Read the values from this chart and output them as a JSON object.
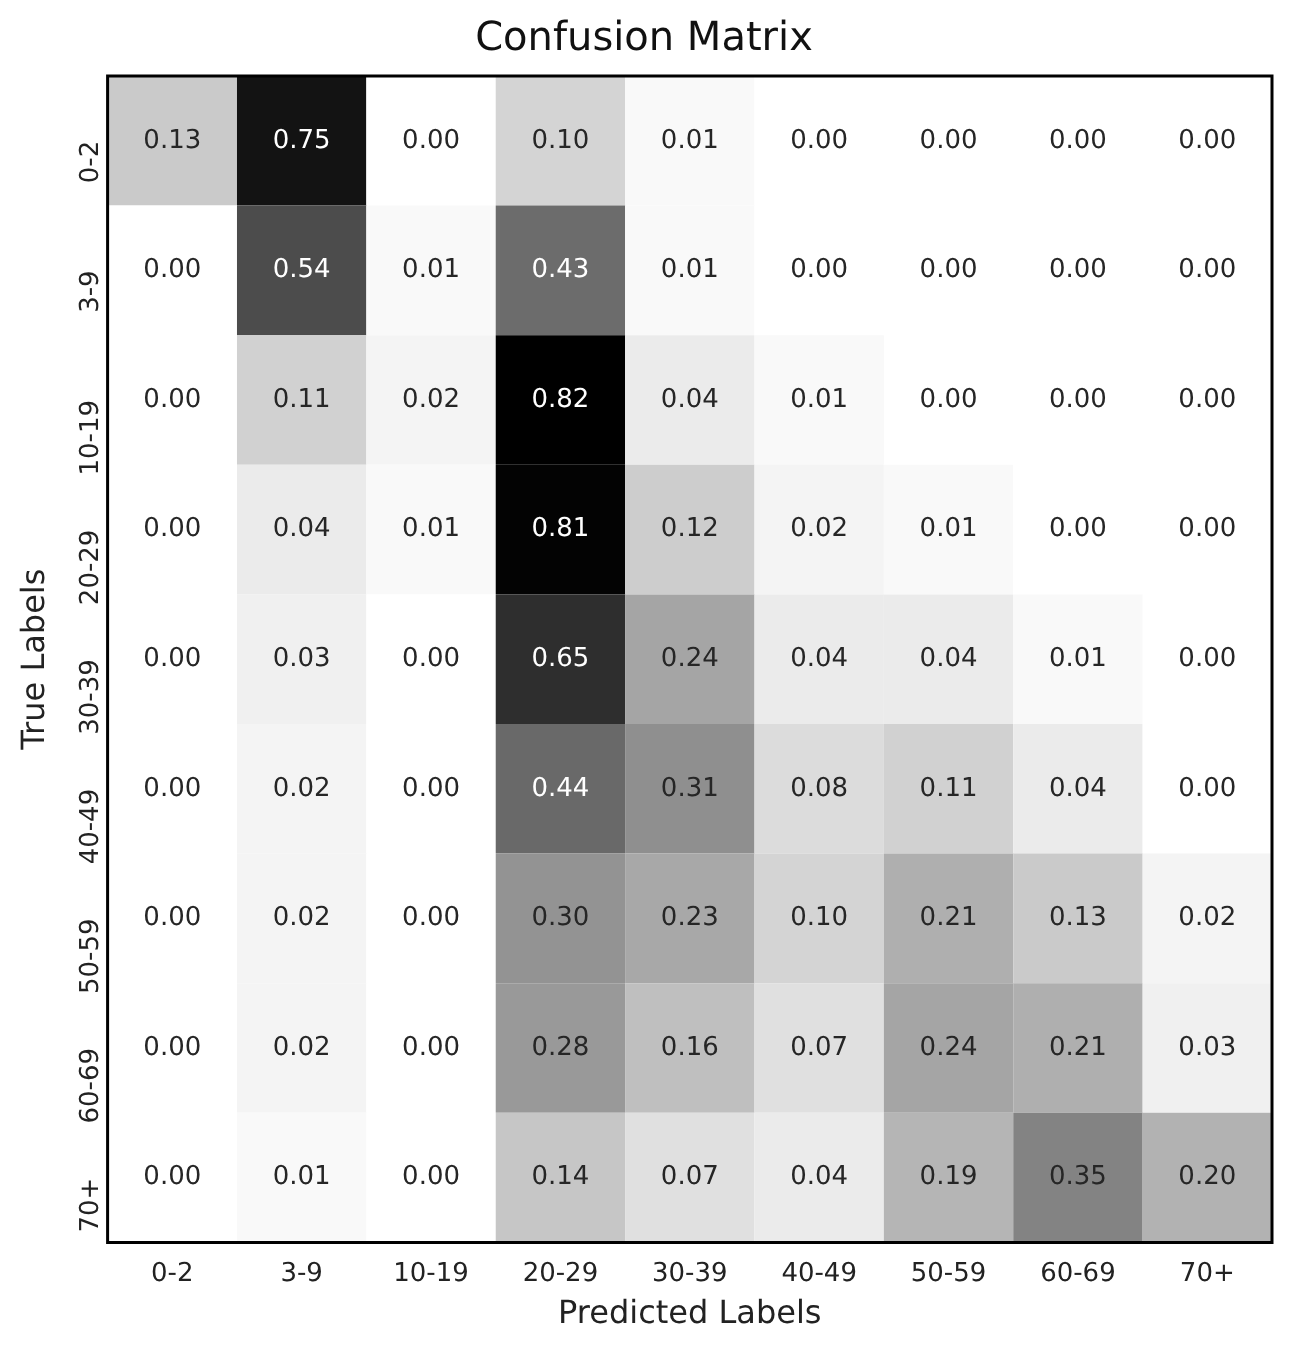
{
  "chart_data": {
    "type": "heatmap",
    "title": "Confusion Matrix",
    "xlabel": "Predicted Labels",
    "ylabel": "True Labels",
    "categories": [
      "0-2",
      "3-9",
      "10-19",
      "20-29",
      "30-39",
      "40-49",
      "50-59",
      "60-69",
      "70+"
    ],
    "y_categories": [
      "0-2",
      "3-9",
      "10-19",
      "20-29",
      "30-39",
      "40-49",
      "50-59",
      "60-69",
      "70+"
    ],
    "cells": [
      [
        0.13,
        0.75,
        0.0,
        0.1,
        0.01,
        0.0,
        0.0,
        0.0,
        0.0
      ],
      [
        0.0,
        0.54,
        0.01,
        0.43,
        0.01,
        0.0,
        0.0,
        0.0,
        0.0
      ],
      [
        0.0,
        0.11,
        0.02,
        0.82,
        0.04,
        0.01,
        0.0,
        0.0,
        0.0
      ],
      [
        0.0,
        0.04,
        0.01,
        0.81,
        0.12,
        0.02,
        0.01,
        0.0,
        0.0
      ],
      [
        0.0,
        0.03,
        0.0,
        0.65,
        0.24,
        0.04,
        0.04,
        0.01,
        0.0
      ],
      [
        0.0,
        0.02,
        0.0,
        0.44,
        0.31,
        0.08,
        0.11,
        0.04,
        0.0
      ],
      [
        0.0,
        0.02,
        0.0,
        0.3,
        0.23,
        0.1,
        0.21,
        0.13,
        0.02
      ],
      [
        0.0,
        0.02,
        0.0,
        0.28,
        0.16,
        0.07,
        0.24,
        0.21,
        0.03
      ],
      [
        0.0,
        0.01,
        0.0,
        0.14,
        0.07,
        0.04,
        0.19,
        0.35,
        0.2
      ]
    ],
    "cell_labels": [
      [
        "0.13",
        "0.75",
        "0.00",
        "0.10",
        "0.01",
        "0.00",
        "0.00",
        "0.00",
        "0.00"
      ],
      [
        "0.00",
        "0.54",
        "0.01",
        "0.43",
        "0.01",
        "0.00",
        "0.00",
        "0.00",
        "0.00"
      ],
      [
        "0.00",
        "0.11",
        "0.02",
        "0.82",
        "0.04",
        "0.01",
        "0.00",
        "0.00",
        "0.00"
      ],
      [
        "0.00",
        "0.04",
        "0.01",
        "0.81",
        "0.12",
        "0.02",
        "0.01",
        "0.00",
        "0.00"
      ],
      [
        "0.00",
        "0.03",
        "0.00",
        "0.65",
        "0.24",
        "0.04",
        "0.04",
        "0.01",
        "0.00"
      ],
      [
        "0.00",
        "0.02",
        "0.00",
        "0.44",
        "0.31",
        "0.08",
        "0.11",
        "0.04",
        "0.00"
      ],
      [
        "0.00",
        "0.02",
        "0.00",
        "0.30",
        "0.23",
        "0.10",
        "0.21",
        "0.13",
        "0.02"
      ],
      [
        "0.00",
        "0.02",
        "0.00",
        "0.28",
        "0.16",
        "0.07",
        "0.24",
        "0.21",
        "0.03"
      ],
      [
        "0.00",
        "0.01",
        "0.00",
        "0.14",
        "0.07",
        "0.04",
        "0.19",
        "0.35",
        "0.20"
      ]
    ]
  }
}
